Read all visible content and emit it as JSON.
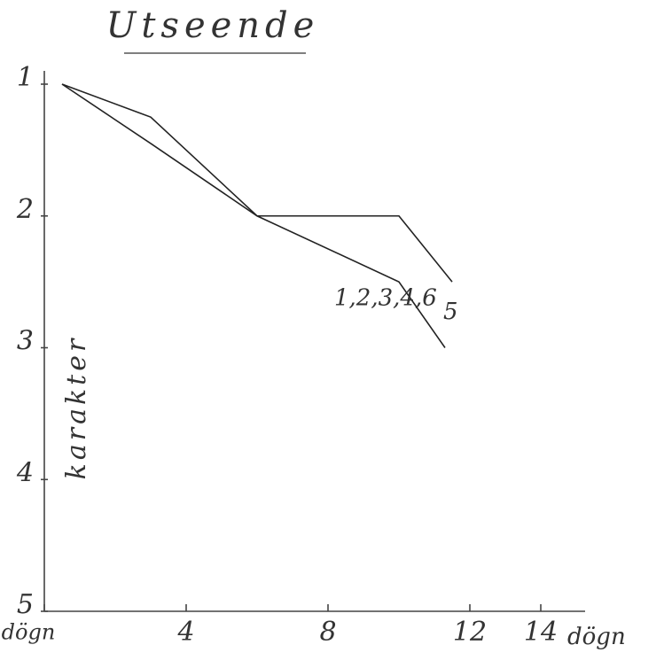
{
  "chart_data": {
    "type": "line",
    "title": "Utseende",
    "ylabel": "karakter",
    "xlabel": "dögn",
    "xlim": [
      0,
      14
    ],
    "xticks": [
      {
        "value": 0,
        "label": "dögn"
      },
      4,
      8,
      12,
      14
    ],
    "ylim": [
      1,
      5
    ],
    "yticks": [
      1,
      2,
      3,
      4,
      5
    ],
    "y_inverted": true,
    "grid": false,
    "series": [
      {
        "name": "5",
        "color": "#222222",
        "x": [
          0.5,
          3,
          6,
          10,
          11.5
        ],
        "values": [
          1,
          1.25,
          2,
          2,
          2.5
        ]
      },
      {
        "name": "1,2,3,4,6",
        "color": "#222222",
        "x": [
          0.5,
          3,
          6,
          10,
          11.3
        ],
        "values": [
          1,
          1.45,
          2,
          2.5,
          3
        ]
      }
    ]
  }
}
